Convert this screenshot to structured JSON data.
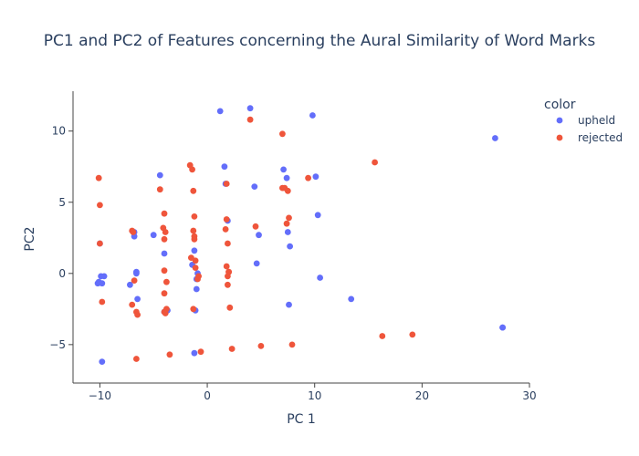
{
  "chart_data": {
    "type": "scatter",
    "title": "PC1 and PC2 of Features concerning the Aural Similarity of Word Marks",
    "xlabel": "PC 1",
    "ylabel": "PC2",
    "xlim": [
      -12.5,
      30
    ],
    "ylim": [
      -7.7,
      12.8
    ],
    "x_ticks": [
      -10,
      0,
      10,
      20,
      30
    ],
    "x_tick_labels": [
      "−10",
      "0",
      "10",
      "20",
      "30"
    ],
    "y_ticks": [
      -5,
      0,
      5,
      10
    ],
    "y_tick_labels": [
      "−5",
      "0",
      "5",
      "10"
    ],
    "grid": false,
    "legend": {
      "title": "color",
      "placement": "top-right"
    },
    "series": [
      {
        "name": "upheld",
        "color": "#636efa",
        "x": [
          1.2,
          4.0,
          9.8,
          26.8,
          27.5,
          -4.4,
          1.6,
          7.1,
          10.1,
          1.7,
          4.4,
          7.4,
          10.3,
          -6.8,
          -5.0,
          1.9,
          4.8,
          7.5,
          7.7,
          -10.0,
          -6.8,
          -4.0,
          -1.2,
          4.6,
          -1.4,
          -9.9,
          -9.6,
          -10.2,
          -6.6,
          -6.6,
          -0.9,
          10.5,
          13.4,
          -10.1,
          -9.8,
          -7.2,
          -1.0,
          -1.0,
          -6.5,
          7.6,
          -4.0,
          -3.7,
          -1.1,
          27.5,
          -1.2,
          -9.8
        ],
        "y": [
          11.4,
          11.6,
          11.1,
          9.5,
          -3.8,
          6.9,
          7.5,
          7.3,
          6.8,
          6.3,
          6.1,
          6.7,
          4.1,
          2.9,
          2.7,
          3.7,
          2.7,
          2.9,
          1.9,
          2.1,
          2.6,
          1.4,
          1.6,
          0.7,
          0.6,
          -0.2,
          -0.2,
          -0.7,
          0.1,
          0.0,
          0.0,
          -0.3,
          -1.8,
          -0.6,
          -0.7,
          -0.8,
          -0.4,
          -1.1,
          -1.8,
          -2.2,
          -2.7,
          -2.6,
          -2.6,
          -3.8,
          -5.6,
          -6.2
        ]
      },
      {
        "name": "rejected",
        "color": "#ef553b",
        "x": [
          4.0,
          7.0,
          15.6,
          -1.4,
          -1.6,
          -10.1,
          -10.0,
          9.4,
          -4.4,
          -1.3,
          1.8,
          7.0,
          7.2,
          7.5,
          -4.0,
          -1.2,
          1.8,
          7.6,
          -7.0,
          -6.9,
          -4.1,
          -3.9,
          -1.3,
          -1.2,
          1.7,
          4.5,
          7.4,
          -10.0,
          -4.0,
          -1.2,
          1.9,
          -1.1,
          1.8,
          -4.0,
          -1.1,
          2.0,
          -6.8,
          -3.8,
          -0.9,
          1.9,
          1.9,
          -4.0,
          -0.8,
          2.0,
          -6.6,
          -4.0,
          -7.0,
          -9.8,
          16.3,
          19.1,
          7.9,
          5.0,
          2.3,
          -0.6,
          -3.5,
          -6.6,
          -1.5,
          -3.8,
          -1.3,
          2.1,
          -6.5,
          -3.9
        ],
        "y": [
          10.8,
          9.8,
          7.8,
          7.3,
          7.6,
          6.7,
          4.8,
          6.7,
          5.9,
          5.8,
          6.3,
          6.0,
          6.0,
          5.8,
          4.2,
          4.0,
          3.8,
          3.9,
          3.0,
          2.9,
          3.2,
          2.9,
          3.0,
          2.6,
          3.1,
          3.3,
          3.5,
          2.1,
          2.4,
          2.4,
          2.1,
          0.9,
          0.5,
          0.2,
          0.4,
          0.1,
          -0.5,
          -0.6,
          -0.4,
          -0.2,
          -0.8,
          -1.4,
          -0.2,
          0.1,
          -2.7,
          -2.7,
          -2.2,
          -2.0,
          -4.4,
          -4.3,
          -5.0,
          -5.1,
          -5.3,
          -5.5,
          -5.7,
          -6.0,
          1.1,
          -2.5,
          -2.5,
          -2.4,
          -2.9,
          -2.8
        ]
      }
    ]
  }
}
